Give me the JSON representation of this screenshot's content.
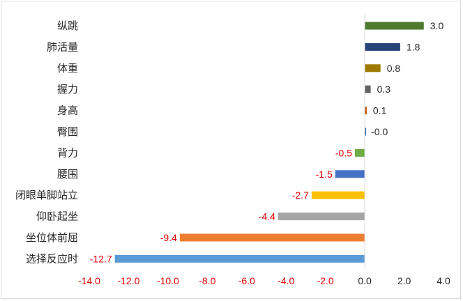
{
  "chart_data": {
    "type": "bar",
    "orientation": "horizontal",
    "categories": [
      "纵跳",
      "肺活量",
      "体重",
      "握力",
      "身高",
      "臀围",
      "背力",
      "腰围",
      "闭眼单脚站立",
      "仰卧起坐",
      "坐位体前屈",
      "选择反应时"
    ],
    "values": [
      3.0,
      1.8,
      0.8,
      0.3,
      0.1,
      -0.0,
      -0.5,
      -1.5,
      -2.7,
      -4.4,
      -9.4,
      -12.7
    ],
    "value_labels": [
      "3.0",
      "1.8",
      "0.8",
      "0.3",
      "0.1",
      "-0.0",
      "-0.5",
      "-1.5",
      "-2.7",
      "-4.4",
      "-9.4",
      "-12.7"
    ],
    "bar_colors": [
      "#4e7a2f",
      "#264478",
      "#9e7a00",
      "#636363",
      "#c55a11",
      "#2e75b6",
      "#70ad47",
      "#4472c4",
      "#ffc000",
      "#a5a5a5",
      "#ed7d31",
      "#5b9bd5"
    ],
    "xlim": [
      -14.0,
      4.0
    ],
    "xticks": [
      -14.0,
      -12.0,
      -10.0,
      -8.0,
      -6.0,
      -4.0,
      -2.0,
      0.0,
      2.0,
      4.0
    ],
    "xtick_labels": [
      "-14.0",
      "-12.0",
      "-10.0",
      "-8.0",
      "-6.0",
      "-4.0",
      "-2.0",
      "0.0",
      "2.0",
      "4.0"
    ],
    "title": "",
    "xlabel": "",
    "ylabel": "",
    "grid": false,
    "legend": "none",
    "colors": {
      "positive_label": "#262626",
      "negative_label": "#e00000",
      "axis": "#d9d9d9"
    }
  }
}
